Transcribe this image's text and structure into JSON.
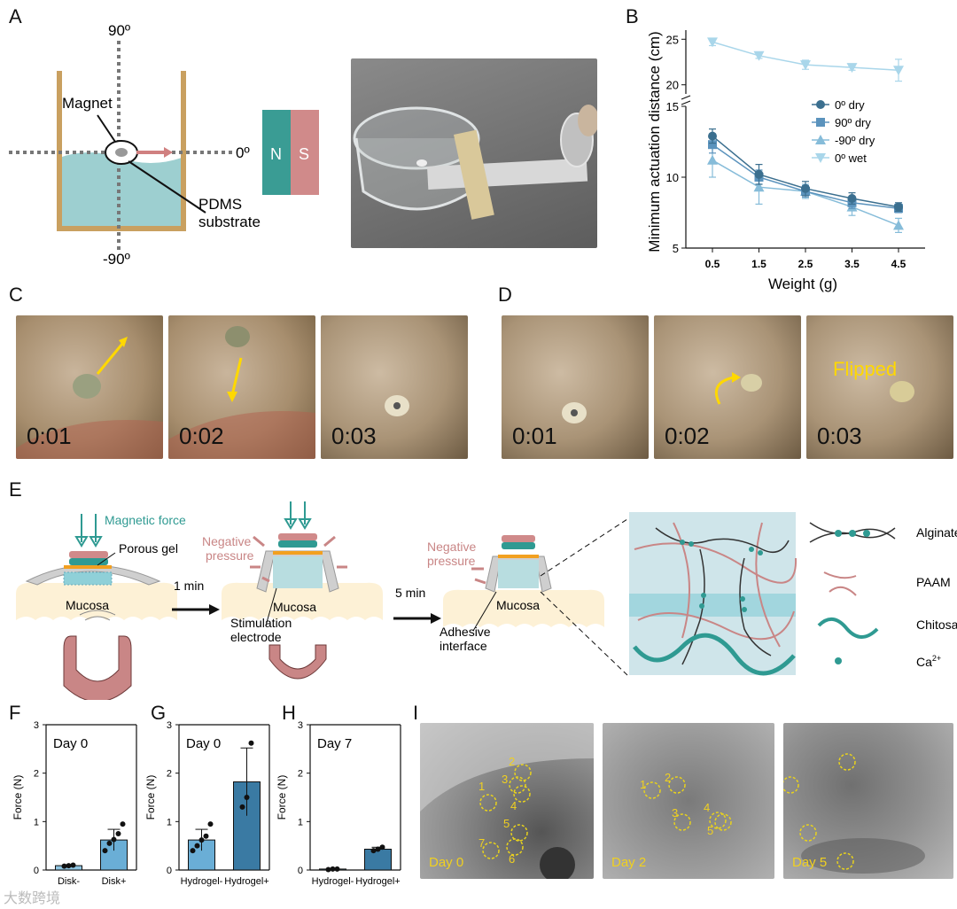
{
  "panels": {
    "a": "A",
    "b": "B",
    "c": "C",
    "d": "D",
    "e": "E",
    "f": "F",
    "g": "G",
    "h": "H",
    "i": "I"
  },
  "panelA": {
    "angle_top": "90º",
    "angle_right": "0º",
    "angle_bottom": "-90º",
    "magnet_label": "Magnet",
    "substrate_label_1": "PDMS",
    "substrate_label_2": "substrate",
    "pole_n": "N",
    "pole_s": "S"
  },
  "panelC": {
    "timestamps": [
      "0:01",
      "0:02",
      "0:03"
    ]
  },
  "panelD": {
    "timestamps": [
      "0:01",
      "0:02",
      "0:03"
    ],
    "flipped_label": "Flipped"
  },
  "panelE": {
    "magnetic_force": "Magnetic force",
    "porous_gel": "Porous gel",
    "mucosa": "Mucosa",
    "negative_pressure_1": "Negative",
    "negative_pressure_2": "pressure",
    "stimulation_1": "Stimulation",
    "stimulation_2": "electrode",
    "adhesive_1": "Adhesive",
    "adhesive_2": "interface",
    "time_1": "1 min",
    "time_2": "5 min",
    "legend": [
      "Alginate",
      "PAAM",
      "Chitosan",
      "Ca"
    ],
    "ca_sup": "2+"
  },
  "panelI": {
    "days": [
      "Day 0",
      "Day 2",
      "Day 5"
    ],
    "day0_circles": [
      "1",
      "2",
      "3",
      "4",
      "5",
      "6",
      "7"
    ],
    "day2_circles": [
      "1",
      "2",
      "3",
      "4",
      "5"
    ]
  },
  "watermark": "大数跨境",
  "chart_data": [
    {
      "type": "line",
      "panel": "B",
      "ylabel": "Minimum actuation distance (cm)",
      "xlabel": "Weight (g)",
      "x": [
        0.5,
        1.5,
        2.5,
        3.5,
        4.5
      ],
      "x_ticks": [
        "0.5",
        "1.5",
        "2.5",
        "3.5",
        "4.5"
      ],
      "y_ticks_lower": [
        "5",
        "10",
        "15"
      ],
      "y_ticks_upper": [
        "20",
        "25"
      ],
      "ylim_lower": [
        5,
        15
      ],
      "ylim_upper": [
        19,
        26
      ],
      "series": [
        {
          "name": "0º dry",
          "color": "#3b6f8f",
          "marker": "circle",
          "values": [
            12.9,
            10.2,
            9.2,
            8.5,
            7.9
          ],
          "err": [
            0.5,
            0.7,
            0.5,
            0.4,
            0.3
          ]
        },
        {
          "name": "90º dry",
          "color": "#5b93bd",
          "marker": "square",
          "values": [
            12.3,
            10.0,
            9.0,
            8.2,
            7.8
          ],
          "err": [
            0.6,
            0.5,
            0.4,
            0.4,
            0.3
          ]
        },
        {
          "name": "-90º dry",
          "color": "#86bcd9",
          "marker": "triangle-up",
          "values": [
            11.2,
            9.3,
            9.0,
            7.9,
            6.6
          ],
          "err": [
            1.2,
            1.2,
            0.5,
            0.6,
            0.5
          ]
        },
        {
          "name": "0º wet",
          "color": "#a9d6ea",
          "marker": "triangle-down",
          "values": [
            24.7,
            23.2,
            22.2,
            21.9,
            21.6
          ],
          "err": [
            0.4,
            0.3,
            0.5,
            0.3,
            1.2
          ]
        }
      ],
      "legend_position": "top-right"
    },
    {
      "type": "bar",
      "panel": "F",
      "title": "Day 0",
      "ylabel": "Force (N)",
      "ylim": [
        0,
        3
      ],
      "y_ticks": [
        "0",
        "1",
        "2",
        "3"
      ],
      "categories": [
        "Disk-",
        "Disk+"
      ],
      "values": [
        0.09,
        0.62
      ],
      "err": [
        0.02,
        0.22
      ],
      "colors": [
        "#8fc5e2",
        "#6aaed6"
      ],
      "points": [
        [
          0.08,
          0.09,
          0.1
        ],
        [
          0.4,
          0.55,
          0.63,
          0.75,
          0.95
        ]
      ]
    },
    {
      "type": "bar",
      "panel": "G",
      "title": "Day 0",
      "ylabel": "Force (N)",
      "ylim": [
        0,
        3
      ],
      "y_ticks": [
        "0",
        "1",
        "2",
        "3"
      ],
      "categories": [
        "Hydrogel-",
        "Hydrogel+"
      ],
      "values": [
        0.62,
        1.82
      ],
      "err": [
        0.22,
        0.7
      ],
      "colors": [
        "#6aaed6",
        "#3a7aa3"
      ],
      "points": [
        [
          0.4,
          0.5,
          0.62,
          0.7,
          0.95
        ],
        [
          1.3,
          1.5,
          2.62
        ]
      ]
    },
    {
      "type": "bar",
      "panel": "H",
      "title": "Day 7",
      "ylabel": "Force (N)",
      "ylim": [
        0,
        3
      ],
      "y_ticks": [
        "0",
        "1",
        "2",
        "3"
      ],
      "categories": [
        "Hydrogel-",
        "Hydrogel+"
      ],
      "values": [
        0.02,
        0.43
      ],
      "err": [
        0.01,
        0.04
      ],
      "colors": [
        "#6aaed6",
        "#3a7aa3"
      ],
      "points": [
        [
          0.01,
          0.02,
          0.02
        ],
        [
          0.4,
          0.43,
          0.47
        ]
      ]
    }
  ]
}
